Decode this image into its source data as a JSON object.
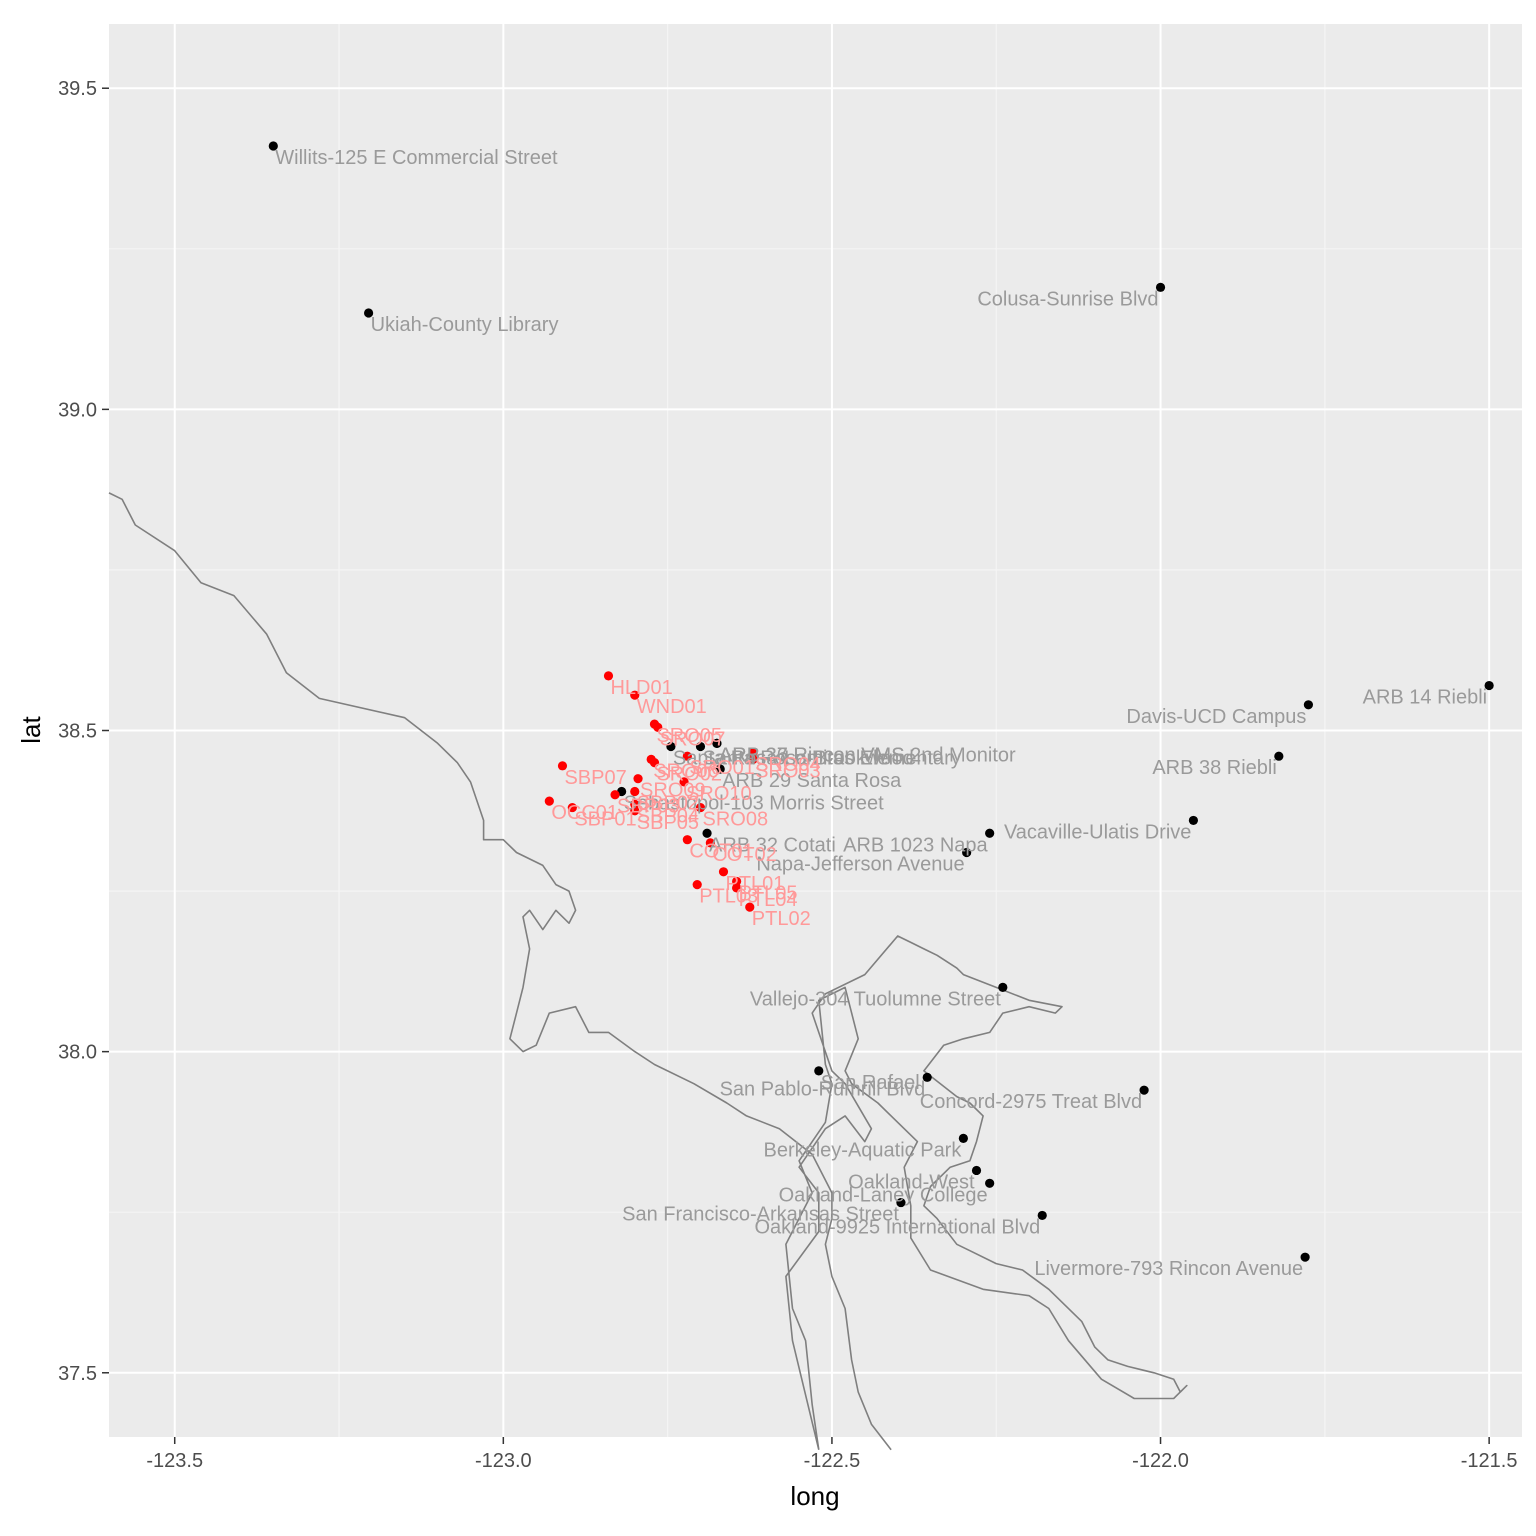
{
  "chart_data": {
    "type": "scatter",
    "xlabel": "long",
    "ylabel": "lat",
    "xlim": [
      -123.6,
      -121.45
    ],
    "ylim": [
      37.4,
      39.6
    ],
    "x_ticks": [
      -123.5,
      -123.0,
      -122.5,
      -122.0,
      -121.5
    ],
    "x_tick_labels": [
      "-123.5",
      "-123.0",
      "-122.5",
      "-122.0",
      "-121.5"
    ],
    "y_ticks": [
      37.5,
      38.0,
      38.5,
      39.0,
      39.5
    ],
    "y_tick_labels": [
      "37.5",
      "38.0",
      "38.5",
      "39.0",
      "39.5"
    ],
    "grid": true,
    "legend": "none",
    "colors": {
      "panel": "#ebebeb",
      "grid_major": "#ffffff",
      "grid_minor": "#f5f5f5",
      "coastline": "#7f7f7f",
      "monitor_point": "#000000",
      "monitor_label": "#9a9a9a",
      "sensor_point": "#ff0000",
      "sensor_label": "#ff9999"
    },
    "coastline": [
      [
        -123.6,
        38.87
      ],
      [
        -123.58,
        38.86
      ],
      [
        -123.56,
        38.82
      ],
      [
        -123.5,
        38.78
      ],
      [
        -123.46,
        38.73
      ],
      [
        -123.41,
        38.71
      ],
      [
        -123.36,
        38.65
      ],
      [
        -123.33,
        38.59
      ],
      [
        -123.28,
        38.55
      ],
      [
        -123.15,
        38.52
      ],
      [
        -123.1,
        38.48
      ],
      [
        -123.07,
        38.45
      ],
      [
        -123.05,
        38.42
      ],
      [
        -123.03,
        38.36
      ],
      [
        -123.03,
        38.33
      ],
      [
        -123.0,
        38.33
      ],
      [
        -122.98,
        38.31
      ],
      [
        -122.94,
        38.29
      ],
      [
        -122.92,
        38.26
      ],
      [
        -122.9,
        38.25
      ],
      [
        -122.89,
        38.22
      ],
      [
        -122.9,
        38.2
      ],
      [
        -122.92,
        38.22
      ],
      [
        -122.94,
        38.19
      ],
      [
        -122.96,
        38.22
      ],
      [
        -122.97,
        38.21
      ],
      [
        -122.96,
        38.16
      ],
      [
        -122.97,
        38.1
      ],
      [
        -122.98,
        38.06
      ],
      [
        -122.99,
        38.02
      ],
      [
        -122.97,
        38.0
      ],
      [
        -122.95,
        38.01
      ],
      [
        -122.93,
        38.06
      ],
      [
        -122.89,
        38.07
      ],
      [
        -122.87,
        38.03
      ],
      [
        -122.84,
        38.03
      ],
      [
        -122.8,
        38.0
      ],
      [
        -122.77,
        37.98
      ],
      [
        -122.71,
        37.95
      ],
      [
        -122.66,
        37.92
      ],
      [
        -122.63,
        37.9
      ],
      [
        -122.58,
        37.88
      ],
      [
        -122.53,
        37.84
      ],
      [
        -122.51,
        37.8
      ],
      [
        -122.5,
        37.78
      ],
      [
        -122.5,
        37.74
      ],
      [
        -122.51,
        37.7
      ],
      [
        -122.5,
        37.65
      ],
      [
        -122.48,
        37.6
      ],
      [
        -122.47,
        37.52
      ],
      [
        -122.46,
        37.47
      ],
      [
        -122.44,
        37.42
      ],
      [
        -122.41,
        37.38
      ]
    ],
    "bay": [
      [
        -122.52,
        37.38
      ],
      [
        -122.56,
        37.55
      ],
      [
        -122.57,
        37.65
      ],
      [
        -122.52,
        37.72
      ],
      [
        -122.52,
        37.78
      ],
      [
        -122.55,
        37.82
      ],
      [
        -122.51,
        37.88
      ],
      [
        -122.48,
        37.9
      ],
      [
        -122.45,
        37.86
      ],
      [
        -122.44,
        37.88
      ],
      [
        -122.48,
        37.95
      ],
      [
        -122.5,
        37.97
      ],
      [
        -122.53,
        38.06
      ],
      [
        -122.51,
        38.09
      ],
      [
        -122.45,
        38.12
      ],
      [
        -122.4,
        38.18
      ],
      [
        -122.38,
        38.17
      ],
      [
        -122.36,
        38.16
      ],
      [
        -122.34,
        38.15
      ],
      [
        -122.31,
        38.13
      ],
      [
        -122.3,
        38.12
      ],
      [
        -122.25,
        38.1
      ],
      [
        -122.2,
        38.08
      ],
      [
        -122.15,
        38.07
      ],
      [
        -122.16,
        38.06
      ],
      [
        -122.2,
        38.07
      ],
      [
        -122.24,
        38.06
      ],
      [
        -122.26,
        38.03
      ],
      [
        -122.3,
        38.02
      ],
      [
        -122.33,
        38.01
      ],
      [
        -122.36,
        37.97
      ],
      [
        -122.31,
        37.93
      ],
      [
        -122.29,
        37.92
      ],
      [
        -122.27,
        37.9
      ],
      [
        -122.28,
        37.86
      ],
      [
        -122.29,
        37.83
      ],
      [
        -122.32,
        37.82
      ],
      [
        -122.35,
        37.79
      ],
      [
        -122.36,
        37.76
      ],
      [
        -122.34,
        37.74
      ],
      [
        -122.31,
        37.7
      ],
      [
        -122.29,
        37.69
      ],
      [
        -122.25,
        37.67
      ],
      [
        -122.21,
        37.66
      ],
      [
        -122.17,
        37.63
      ],
      [
        -122.12,
        37.58
      ],
      [
        -122.1,
        37.54
      ],
      [
        -122.08,
        37.52
      ],
      [
        -122.05,
        37.51
      ],
      [
        -122.01,
        37.5
      ],
      [
        -121.98,
        37.49
      ],
      [
        -121.97,
        37.47
      ],
      [
        -121.96,
        37.48
      ],
      [
        -121.98,
        37.46
      ],
      [
        -122.04,
        37.46
      ],
      [
        -122.09,
        37.49
      ],
      [
        -122.14,
        37.55
      ],
      [
        -122.17,
        37.6
      ],
      [
        -122.2,
        37.62
      ],
      [
        -122.27,
        37.63
      ],
      [
        -122.35,
        37.66
      ],
      [
        -122.38,
        37.71
      ],
      [
        -122.38,
        37.76
      ],
      [
        -122.39,
        37.82
      ],
      [
        -122.37,
        37.86
      ],
      [
        -122.43,
        37.92
      ],
      [
        -122.47,
        37.95
      ],
      [
        -122.48,
        37.97
      ],
      [
        -122.46,
        38.02
      ],
      [
        -122.48,
        38.1
      ],
      [
        -122.52,
        38.08
      ],
      [
        -122.51,
        37.98
      ],
      [
        -122.5,
        37.95
      ],
      [
        -122.51,
        37.89
      ],
      [
        -122.55,
        37.83
      ],
      [
        -122.53,
        37.78
      ],
      [
        -122.57,
        37.7
      ],
      [
        -122.56,
        37.6
      ],
      [
        -122.54,
        37.55
      ],
      [
        -122.53,
        37.45
      ],
      [
        -122.52,
        37.38
      ]
    ],
    "series": [
      {
        "name": "",
        "color": "#000000",
        "label_color": "#9a9a9a",
        "points": [
          {
            "x": -123.35,
            "y": 39.41,
            "label": "Willits-125 E Commercial Street",
            "anchor": "start"
          },
          {
            "x": -123.205,
            "y": 39.15,
            "label": "Ukiah-County Library",
            "anchor": "start"
          },
          {
            "x": -122.0,
            "y": 39.19,
            "label": "Colusa-Sunrise Blvd",
            "anchor": "end"
          },
          {
            "x": -121.5,
            "y": 38.57,
            "label": "ARB 14 Riebli",
            "anchor": "end"
          },
          {
            "x": -121.775,
            "y": 38.54,
            "label": "Davis-UCD Campus",
            "anchor": "end"
          },
          {
            "x": -121.82,
            "y": 38.46,
            "label": "ARB 38 Riebli",
            "anchor": "end"
          },
          {
            "x": -121.95,
            "y": 38.36,
            "label": "Vacaville-Ulatis Drive",
            "anchor": "end"
          },
          {
            "x": -122.26,
            "y": 38.34,
            "label": "ARB 1023 Napa",
            "anchor": "end"
          },
          {
            "x": -122.295,
            "y": 38.31,
            "label": "Napa-Jefferson Avenue",
            "anchor": "end"
          },
          {
            "x": -122.675,
            "y": 38.48,
            "label": "ARB 36 Rincon VMS",
            "anchor": "start"
          },
          {
            "x": -122.675,
            "y": 38.48,
            "label": "ARB 37 Rincon VMS 2nd Monitor",
            "anchor": "start"
          },
          {
            "x": -122.7,
            "y": 38.475,
            "label": "Santa Rosa-Brookwood",
            "anchor": "start"
          },
          {
            "x": -122.745,
            "y": 38.475,
            "label": "Santa Rosa-Lomitas Elementary",
            "anchor": "start"
          },
          {
            "x": -122.67,
            "y": 38.44,
            "label": "ARB 29 Santa Rosa",
            "anchor": "start"
          },
          {
            "x": -122.82,
            "y": 38.405,
            "label": "Sebastopol-103 Morris Street",
            "anchor": "start"
          },
          {
            "x": -122.69,
            "y": 38.34,
            "label": "ARB 32 Cotati",
            "anchor": "start"
          },
          {
            "x": -122.24,
            "y": 38.1,
            "label": "Vallejo-304 Tuolumne Street",
            "anchor": "end"
          },
          {
            "x": -122.52,
            "y": 37.97,
            "label": "San Rafael",
            "anchor": "start"
          },
          {
            "x": -122.355,
            "y": 37.96,
            "label": "San Pablo-Rumrill Blvd",
            "anchor": "end"
          },
          {
            "x": -122.025,
            "y": 37.94,
            "label": "Concord-2975 Treat Blvd",
            "anchor": "end"
          },
          {
            "x": -122.3,
            "y": 37.865,
            "label": "Berkeley-Aquatic Park",
            "anchor": "end"
          },
          {
            "x": -122.28,
            "y": 37.815,
            "label": "Oakland-West",
            "anchor": "end"
          },
          {
            "x": -122.26,
            "y": 37.795,
            "label": "Oakland-Laney College",
            "anchor": "end"
          },
          {
            "x": -122.395,
            "y": 37.765,
            "label": "San Francisco-Arkansas Street",
            "anchor": "end"
          },
          {
            "x": -122.18,
            "y": 37.745,
            "label": "Oakland-9925 International Blvd",
            "anchor": "end"
          },
          {
            "x": -121.78,
            "y": 37.68,
            "label": "Livermore-793 Rincon Avenue",
            "anchor": "end"
          }
        ]
      },
      {
        "name": "",
        "color": "#ff0000",
        "label_color": "#ff9999",
        "points": [
          {
            "x": -122.84,
            "y": 38.585,
            "label": "HLD01",
            "anchor": "start"
          },
          {
            "x": -122.8,
            "y": 38.555,
            "label": "WND01",
            "anchor": "start"
          },
          {
            "x": -122.765,
            "y": 38.505,
            "label": "SRO07",
            "anchor": "start"
          },
          {
            "x": -122.77,
            "y": 38.51,
            "label": "SRO05",
            "anchor": "start"
          },
          {
            "x": -122.775,
            "y": 38.455,
            "label": "SRO06",
            "anchor": "start"
          },
          {
            "x": -122.72,
            "y": 38.46,
            "label": "SRO01",
            "anchor": "start"
          },
          {
            "x": -122.62,
            "y": 38.465,
            "label": "SRO04",
            "anchor": "start"
          },
          {
            "x": -122.62,
            "y": 38.455,
            "label": "SRO03",
            "anchor": "start"
          },
          {
            "x": -122.77,
            "y": 38.45,
            "label": "SRO02",
            "anchor": "start"
          },
          {
            "x": -122.91,
            "y": 38.445,
            "label": "SBP07",
            "anchor": "start"
          },
          {
            "x": -122.795,
            "y": 38.425,
            "label": "SRO09",
            "anchor": "start"
          },
          {
            "x": -122.725,
            "y": 38.42,
            "label": "SRO10",
            "anchor": "start"
          },
          {
            "x": -122.8,
            "y": 38.405,
            "label": "SBP02",
            "anchor": "start"
          },
          {
            "x": -122.83,
            "y": 38.4,
            "label": "SBP03",
            "anchor": "start"
          },
          {
            "x": -122.8,
            "y": 38.385,
            "label": "SBP04",
            "anchor": "start"
          },
          {
            "x": -122.8,
            "y": 38.375,
            "label": "SBP05",
            "anchor": "start"
          },
          {
            "x": -122.93,
            "y": 38.39,
            "label": "OCC01",
            "anchor": "start"
          },
          {
            "x": -122.895,
            "y": 38.38,
            "label": "SBP01",
            "anchor": "start"
          },
          {
            "x": -122.7,
            "y": 38.38,
            "label": "SRO08",
            "anchor": "start"
          },
          {
            "x": -122.72,
            "y": 38.33,
            "label": "COT01",
            "anchor": "start"
          },
          {
            "x": -122.685,
            "y": 38.325,
            "label": "COT02",
            "anchor": "start"
          },
          {
            "x": -122.665,
            "y": 38.28,
            "label": "PTL01",
            "anchor": "start"
          },
          {
            "x": -122.645,
            "y": 38.265,
            "label": "PTL05",
            "anchor": "start"
          },
          {
            "x": -122.705,
            "y": 38.26,
            "label": "PTL03",
            "anchor": "start"
          },
          {
            "x": -122.645,
            "y": 38.255,
            "label": "PTL04",
            "anchor": "start"
          },
          {
            "x": -122.625,
            "y": 38.225,
            "label": "PTL02",
            "anchor": "start"
          }
        ]
      }
    ]
  }
}
